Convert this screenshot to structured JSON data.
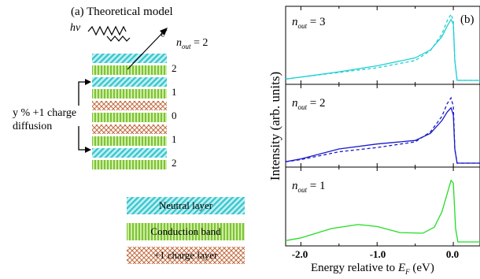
{
  "panel_a": {
    "title": "(a) Theoretical model",
    "photon_label": "hν",
    "electron_label": "e",
    "electron_sup": "-",
    "nout_var": "n",
    "nout_sub": "out",
    "nout_value": "= 2",
    "layer_numbers": [
      "2",
      "1",
      "0",
      "1",
      "2"
    ],
    "diffusion_line1": "y % +1 charge",
    "diffusion_line2": "diffusion",
    "legend": [
      {
        "label": "Neutral layer",
        "color": "#7fd6dc"
      },
      {
        "label": "Conduction band",
        "color": "#a8d66a"
      },
      {
        "label": "+1 charge layer",
        "color": "#e8b494"
      }
    ]
  },
  "panel_b": {
    "label": "(b)",
    "ylabel": "Intensity (arb. units)",
    "xlabel_main": "Energy relative to ",
    "xlabel_var": "E",
    "xlabel_sub": "F",
    "xlabel_unit": " (eV)",
    "tick_labels": [
      "-2.0",
      "-1.0",
      "0.0"
    ]
  },
  "chart_data": {
    "type": "line",
    "x_range": [
      -2.2,
      0.35
    ],
    "x_ticks": [
      -2.0,
      -1.0,
      0.0
    ],
    "ylabel": "Intensity (arb. units)",
    "panels": [
      {
        "label_var": "n",
        "label_sub": "out",
        "label_value": "= 3",
        "color": "#22d0d4",
        "series": [
          {
            "style": "solid",
            "x": [
              -2.2,
              -2.0,
              -1.5,
              -1.0,
              -0.5,
              -0.3,
              -0.15,
              -0.08,
              -0.03,
              0.0,
              0.02,
              0.05,
              0.35
            ],
            "y": [
              0.02,
              0.05,
              0.13,
              0.22,
              0.34,
              0.46,
              0.66,
              0.82,
              0.92,
              0.85,
              0.3,
              0.0,
              0.0
            ]
          },
          {
            "style": "dashed",
            "x": [
              -2.2,
              -2.0,
              -1.5,
              -1.0,
              -0.5,
              -0.3,
              -0.15,
              -0.08,
              -0.03,
              0.0,
              0.02,
              0.05,
              0.35
            ],
            "y": [
              0.02,
              0.05,
              0.12,
              0.19,
              0.3,
              0.45,
              0.7,
              0.9,
              1.0,
              0.9,
              0.3,
              0.0,
              0.0
            ]
          }
        ]
      },
      {
        "label_var": "n",
        "label_sub": "out",
        "label_value": "= 2",
        "color": "#1a1acc",
        "series": [
          {
            "style": "solid",
            "x": [
              -2.2,
              -2.0,
              -1.5,
              -1.0,
              -0.5,
              -0.3,
              -0.15,
              -0.08,
              -0.03,
              0.0,
              0.02,
              0.05,
              0.35
            ],
            "y": [
              0.02,
              0.06,
              0.2,
              0.27,
              0.32,
              0.42,
              0.6,
              0.72,
              0.78,
              0.68,
              0.2,
              0.0,
              0.0
            ]
          },
          {
            "style": "dashed",
            "x": [
              -2.2,
              -2.0,
              -1.5,
              -1.0,
              -0.5,
              -0.3,
              -0.15,
              -0.08,
              -0.03,
              0.0,
              0.02,
              0.05,
              0.35
            ],
            "y": [
              0.02,
              0.05,
              0.16,
              0.22,
              0.3,
              0.44,
              0.66,
              0.84,
              0.92,
              0.8,
              0.2,
              0.0,
              0.0
            ]
          }
        ]
      },
      {
        "label_var": "n",
        "label_sub": "out",
        "label_value": "= 1",
        "color": "#22dd22",
        "series": [
          {
            "style": "solid",
            "x": [
              -2.2,
              -2.0,
              -1.6,
              -1.25,
              -1.0,
              -0.7,
              -0.4,
              -0.25,
              -0.15,
              -0.08,
              -0.03,
              0.0,
              0.03,
              0.06,
              0.35
            ],
            "y": [
              0.02,
              0.06,
              0.2,
              0.26,
              0.23,
              0.14,
              0.13,
              0.22,
              0.45,
              0.72,
              0.92,
              0.88,
              0.2,
              0.0,
              0.0
            ]
          }
        ]
      }
    ]
  }
}
